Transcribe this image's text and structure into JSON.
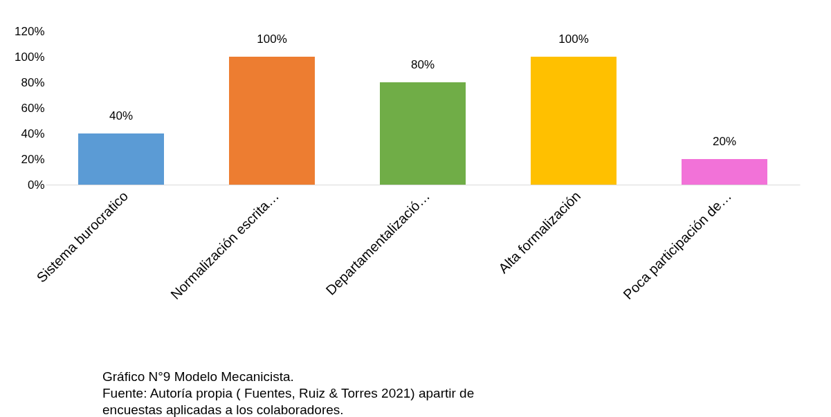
{
  "chart_data": {
    "type": "bar",
    "categories": [
      "Sistema burocratico",
      "Normalización escrita…",
      "Departamentalizació…",
      "Alta formalización",
      "Poca participación de…"
    ],
    "values": [
      40,
      100,
      80,
      100,
      20
    ],
    "colors": [
      "#5b9bd5",
      "#ed7d31",
      "#70ad47",
      "#ffc000",
      "#f272d8"
    ],
    "value_labels": [
      "40%",
      "100%",
      "80%",
      "100%",
      "20%"
    ],
    "ylim": [
      0,
      120
    ],
    "yticks": [
      {
        "value": 0,
        "label": "0%"
      },
      {
        "value": 20,
        "label": "20%"
      },
      {
        "value": 40,
        "label": "40%"
      },
      {
        "value": 60,
        "label": "60%"
      },
      {
        "value": 80,
        "label": "80%"
      },
      {
        "value": 100,
        "label": "100%"
      },
      {
        "value": 120,
        "label": "120%"
      }
    ],
    "grid": false,
    "annotations": [
      "Gráfico N°9 Modelo Mecanicista.",
      "Fuente: Autoría propia ( Fuentes, Ruiz & Torres 2021) apartir de encuestas aplicadas a los colaboradores."
    ]
  }
}
